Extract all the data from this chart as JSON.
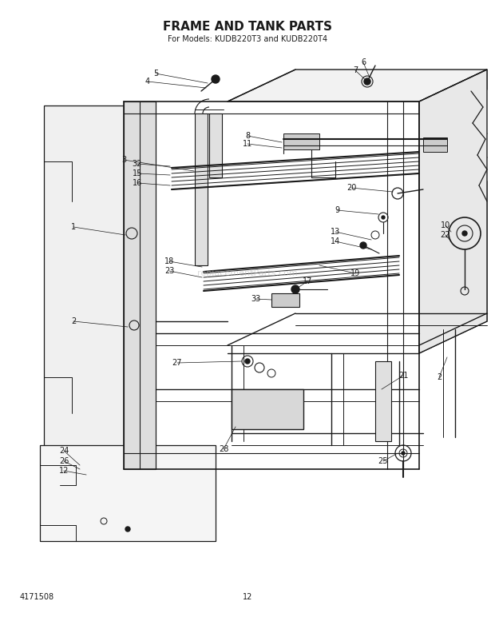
{
  "title": "FRAME AND TANK PARTS",
  "subtitle": "For Models: KUDB220T3 and KUDB220T4",
  "part_number": "4171508",
  "page_number": "12",
  "bg_color": "#ffffff",
  "line_color": "#1a1a1a",
  "title_fontsize": 11,
  "subtitle_fontsize": 7,
  "label_fontsize": 7,
  "watermark": "replacementParts.com",
  "fig_w": 6.2,
  "fig_h": 7.82,
  "dpi": 100
}
